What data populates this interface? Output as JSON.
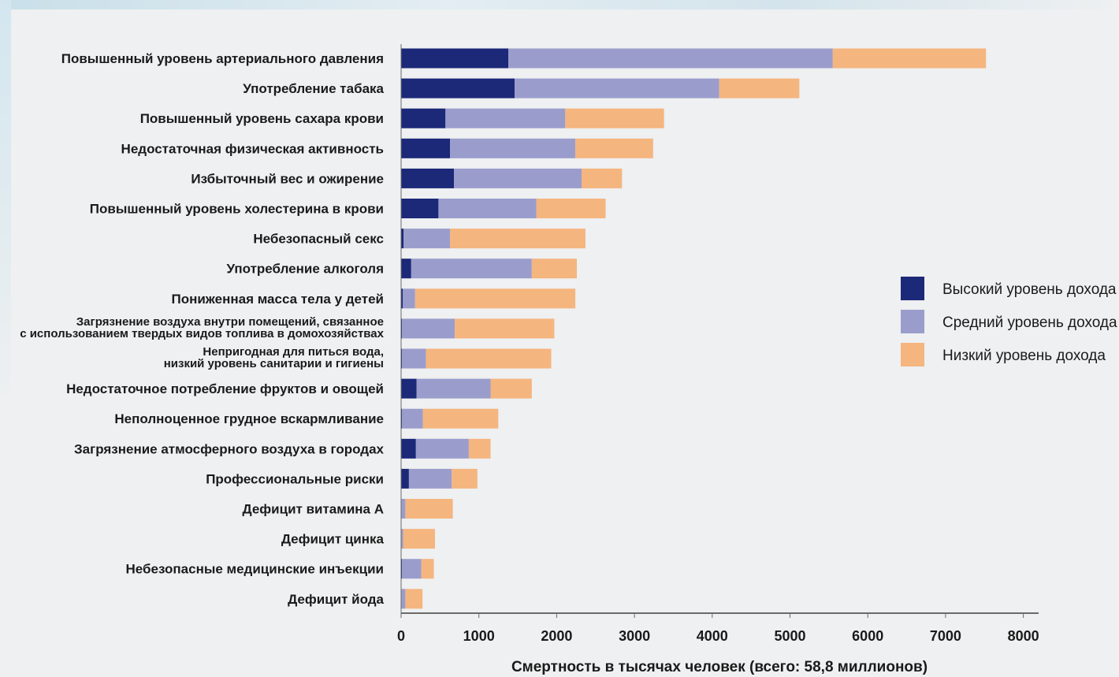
{
  "chart_data": {
    "type": "bar",
    "orientation": "horizontal",
    "stacked": true,
    "title": "",
    "xlabel": "Смертность в тысячах человек (всего: 58,8 миллионов)",
    "ylabel": "",
    "xlim": [
      0,
      8000
    ],
    "xticks": [
      "0",
      "1000",
      "2000",
      "3000",
      "4000",
      "5000",
      "6000",
      "7000",
      "8000"
    ],
    "grid": false,
    "legend_position": "right",
    "categories": [
      [
        "Повышенный уровень артериального давления"
      ],
      [
        "Употребление табака"
      ],
      [
        "Повышенный уровень сахара крови"
      ],
      [
        "Недостаточная физическая активность"
      ],
      [
        "Избыточный вес и ожирение"
      ],
      [
        "Повышенный уровень холестерина в крови"
      ],
      [
        "Небезопасный секс"
      ],
      [
        "Употребление алкоголя"
      ],
      [
        "Пониженная масса тела у детей"
      ],
      [
        "Загрязнение воздуха внутри помещений, связанное",
        "с использованием твердых видов топлива в домохозяйствах"
      ],
      [
        "Непригодная для питься вода,",
        "низкий уровень санитарии и гигиены"
      ],
      [
        "Недостаточное потребление фруктов и овощей"
      ],
      [
        "Неполноценное грудное вскармливание"
      ],
      [
        "Загрязнение атмосферного воздуха в городах"
      ],
      [
        "Профессиональные риски"
      ],
      [
        "Дефицит витамина А"
      ],
      [
        "Дефицит цинка"
      ],
      [
        "Небезопасные медицинские инъекции"
      ],
      [
        "Дефицит йода"
      ]
    ],
    "series": [
      {
        "name": "Высокий уровень дохода",
        "color": "#1c2878",
        "values": [
          1380,
          1460,
          570,
          630,
          680,
          480,
          30,
          130,
          20,
          10,
          10,
          200,
          10,
          190,
          100,
          5,
          5,
          10,
          5
        ]
      },
      {
        "name": "Средний уровень дохода",
        "color": "#9a9dcc",
        "values": [
          4170,
          2630,
          1540,
          1610,
          1640,
          1260,
          600,
          1550,
          160,
          680,
          310,
          950,
          270,
          680,
          550,
          50,
          20,
          250,
          50
        ]
      },
      {
        "name": "Низкий уровень дохода",
        "color": "#f5b57f",
        "values": [
          1970,
          1030,
          1270,
          1000,
          520,
          890,
          1740,
          580,
          2060,
          1280,
          1610,
          530,
          970,
          280,
          330,
          610,
          410,
          160,
          220
        ]
      }
    ]
  }
}
